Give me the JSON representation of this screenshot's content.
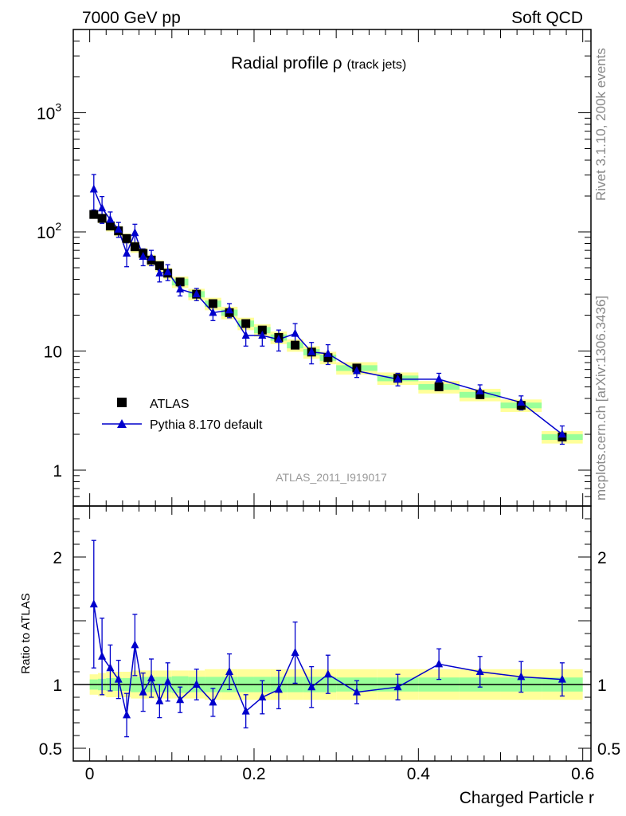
{
  "header": {
    "left": "7000 GeV pp",
    "right": "Soft QCD"
  },
  "side_text": {
    "top": "Rivet 3.1.10,  200k events",
    "bottom": "mcplots.cern.ch [arXiv:1306.3436]"
  },
  "chart_data": {
    "type": "scatter",
    "title": "Radial profile",
    "title_symbol": "ρ",
    "title_suffix": "(track jets)",
    "watermark": "ATLAS_2011_I919017",
    "xlabel": "Charged Particle r",
    "ratio_ylabel": "Ratio to ATLAS",
    "xlim": [
      -0.02,
      0.61
    ],
    "ylim": [
      0.5,
      5000
    ],
    "yscale": "log",
    "ratio_ylim": [
      0.4,
      2.4
    ],
    "main_yticks": [
      {
        "value": 1000,
        "base": "10",
        "exp": "3",
        "text": ""
      },
      {
        "value": 100,
        "base": "10",
        "exp": "2",
        "text": ""
      },
      {
        "value": 10,
        "base": "",
        "exp": "",
        "text": "10"
      },
      {
        "value": 1,
        "base": "",
        "exp": "",
        "text": "1"
      }
    ],
    "ratio_yticks": [
      {
        "value": 2,
        "text": "2"
      },
      {
        "value": 1,
        "text": "1"
      },
      {
        "value": 0.5,
        "text": "0.5"
      }
    ],
    "xticks": [
      {
        "value": 0,
        "text": "0"
      },
      {
        "value": 0.2,
        "text": "0.2"
      },
      {
        "value": 0.4,
        "text": "0.4"
      },
      {
        "value": 0.6,
        "text": "0.6"
      }
    ],
    "legend": [
      {
        "name": "ATLAS",
        "marker": "square"
      },
      {
        "name": "Pythia 8.170 default",
        "marker": "triangle"
      }
    ],
    "colors": {
      "data": "#000000",
      "mc": "#0000cc",
      "band_inner": "#99ff99",
      "band_outer": "#ffff99"
    },
    "x": [
      0.005,
      0.015,
      0.025,
      0.035,
      0.045,
      0.055,
      0.065,
      0.075,
      0.085,
      0.095,
      0.11,
      0.13,
      0.15,
      0.17,
      0.19,
      0.21,
      0.23,
      0.25,
      0.27,
      0.29,
      0.325,
      0.375,
      0.425,
      0.475,
      0.525,
      0.575
    ],
    "x_width": [
      0.005,
      0.005,
      0.005,
      0.005,
      0.005,
      0.005,
      0.005,
      0.005,
      0.005,
      0.005,
      0.01,
      0.01,
      0.01,
      0.01,
      0.01,
      0.01,
      0.01,
      0.01,
      0.01,
      0.01,
      0.025,
      0.025,
      0.025,
      0.025,
      0.025,
      0.025
    ],
    "series": [
      {
        "name": "ATLAS",
        "values": [
          140,
          130,
          112,
          102,
          88,
          75,
          66,
          58,
          52,
          45,
          38,
          30,
          25,
          21,
          17,
          15,
          13,
          11.2,
          9.8,
          8.8,
          7.2,
          5.9,
          5.0,
          4.3,
          3.5,
          1.9
        ],
        "rel_err_inner": [
          0.04,
          0.045,
          0.05,
          0.05,
          0.05,
          0.06,
          0.06,
          0.06,
          0.06,
          0.06,
          0.065,
          0.06,
          0.06,
          0.06,
          0.06,
          0.06,
          0.06,
          0.06,
          0.06,
          0.06,
          0.055,
          0.055,
          0.055,
          0.055,
          0.055,
          0.055
        ],
        "rel_err_outer": [
          0.08,
          0.09,
          0.1,
          0.1,
          0.1,
          0.11,
          0.11,
          0.11,
          0.11,
          0.11,
          0.11,
          0.11,
          0.12,
          0.12,
          0.12,
          0.12,
          0.12,
          0.12,
          0.12,
          0.12,
          0.12,
          0.12,
          0.12,
          0.12,
          0.12,
          0.12
        ]
      },
      {
        "name": "Pythia 8.170 default",
        "values": [
          228,
          158,
          127,
          105,
          66,
          98,
          62,
          61,
          45,
          46,
          33,
          30,
          21,
          22,
          13.5,
          13.5,
          12.5,
          14,
          9.8,
          9.5,
          6.8,
          5.8,
          5.8,
          4.6,
          3.7,
          2.0
        ],
        "errors": [
          75,
          40,
          20,
          15,
          15,
          18,
          10,
          9,
          7,
          7,
          4,
          3.5,
          3,
          3,
          2.5,
          2.5,
          2.5,
          3,
          2,
          1.8,
          0.8,
          0.7,
          0.7,
          0.6,
          0.5,
          0.35
        ],
        "ratio": [
          1.63,
          1.22,
          1.13,
          1.04,
          0.76,
          1.31,
          0.94,
          1.05,
          0.87,
          1.02,
          0.88,
          1.0,
          0.86,
          1.1,
          0.79,
          0.9,
          0.96,
          1.25,
          0.98,
          1.08,
          0.94,
          0.98,
          1.16,
          1.1,
          1.06,
          1.04
        ],
        "ratio_err": [
          0.5,
          0.3,
          0.18,
          0.15,
          0.17,
          0.24,
          0.15,
          0.15,
          0.13,
          0.15,
          0.1,
          0.12,
          0.11,
          0.14,
          0.13,
          0.13,
          0.15,
          0.24,
          0.16,
          0.15,
          0.09,
          0.1,
          0.12,
          0.12,
          0.12,
          0.13
        ]
      }
    ]
  }
}
